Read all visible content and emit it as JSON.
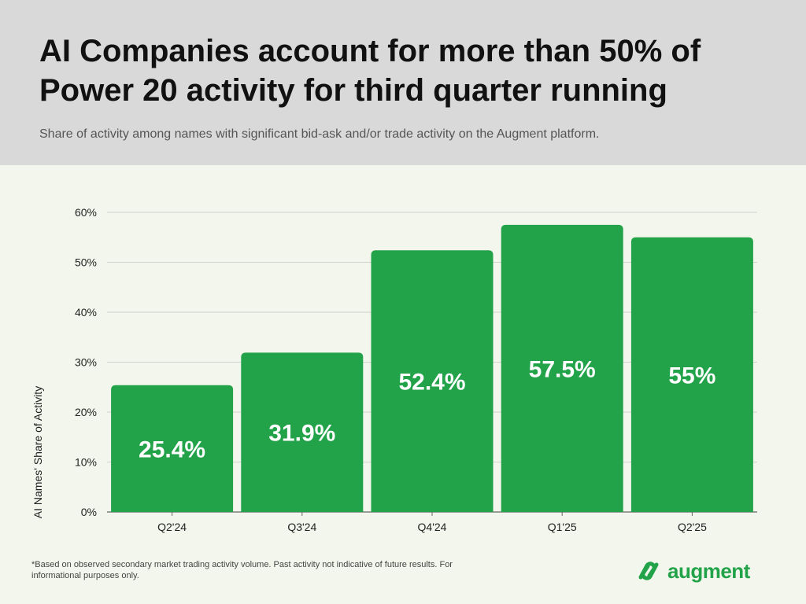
{
  "header": {
    "title": "AI Companies account for more than 50% of Power 20 activity for third quarter running",
    "subtitle": "Share of activity among names with significant bid-ask and/or trade activity on the Augment platform."
  },
  "footnote": "*Based on observed secondary market trading activity volume. Past activity not indicative of future results. For informational purposes only.",
  "brand": {
    "name": "augment",
    "color": "#22a349",
    "icon": "augment-logo-icon"
  },
  "colors": {
    "bar": "#22a349",
    "header_bg": "#d9d9d9",
    "plot_bg": "#f3f6ec"
  },
  "chart_data": {
    "type": "bar",
    "categories": [
      "Q2'24",
      "Q3'24",
      "Q4'24",
      "Q1'25",
      "Q2'25"
    ],
    "values": [
      25.4,
      31.9,
      52.4,
      57.5,
      55
    ],
    "data_labels": [
      "25.4%",
      "31.9%",
      "52.4%",
      "57.5%",
      "55%"
    ],
    "ylabel": "AI Names' Share of Activity",
    "xlabel": "",
    "ylim": [
      0,
      60
    ],
    "yticks": [
      0,
      10,
      20,
      30,
      40,
      50,
      60
    ],
    "ytick_labels": [
      "0%",
      "10%",
      "20%",
      "30%",
      "40%",
      "50%",
      "60%"
    ],
    "grid": true,
    "legend": "none"
  }
}
